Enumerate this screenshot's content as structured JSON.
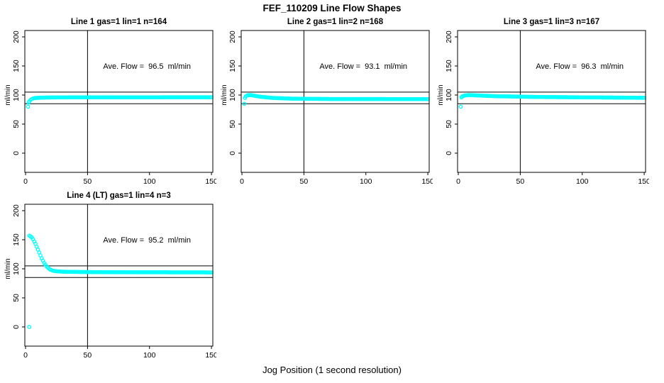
{
  "header": {
    "title": "FEF_110209  Line Flow Shapes"
  },
  "footer": {
    "xlabel": "Jog Position (1 second resolution)"
  },
  "colors": {
    "points": "#00FFFF",
    "axis": "#000000",
    "text": "#000000",
    "background": "#FFFFFF"
  },
  "axes": {
    "ylabel": "ml/min",
    "xticks": [
      0,
      50,
      100,
      150
    ],
    "yticks": [
      0,
      50,
      100,
      150,
      200
    ],
    "xlim": [
      -0.6,
      151.1
    ],
    "ylim": [
      -33,
      211
    ],
    "hlines": [
      85,
      105
    ],
    "vline": 50,
    "grid": false
  },
  "chart_data": [
    {
      "type": "scatter",
      "title": "Line 1 gas=1 lin=1 n=164",
      "annotation": "Ave. Flow =  96.5  ml/min",
      "ave_flow_ml_min": 96.5,
      "n": 164,
      "series": [
        {
          "name": "flow",
          "keyframes": [
            [
              2.5,
              87
            ],
            [
              3,
              89
            ],
            [
              4,
              91.5
            ],
            [
              5,
              93
            ],
            [
              6,
              94
            ],
            [
              8,
              95
            ],
            [
              12,
              95.5
            ],
            [
              25,
              96
            ],
            [
              150,
              96.2
            ]
          ],
          "isolated_points": [
            [
              2,
              80
            ]
          ]
        }
      ]
    },
    {
      "type": "scatter",
      "title": "Line 2 gas=1 lin=2 n=168",
      "annotation": "Ave. Flow =  93.1  ml/min",
      "ave_flow_ml_min": 93.1,
      "n": 168,
      "series": [
        {
          "name": "flow",
          "keyframes": [
            [
              2.5,
              95
            ],
            [
              3,
              97.5
            ],
            [
              4,
              99
            ],
            [
              5,
              99.8
            ],
            [
              7,
              100
            ],
            [
              10,
              98.8
            ],
            [
              15,
              97
            ],
            [
              25,
              95
            ],
            [
              40,
              93.8
            ],
            [
              70,
              93.2
            ],
            [
              150,
              93
            ]
          ],
          "isolated_points": [
            [
              2,
              85
            ]
          ]
        }
      ]
    },
    {
      "type": "scatter",
      "title": "Line 3 gas=1 lin=3 n=167",
      "annotation": "Ave. Flow =  96.3  ml/min",
      "ave_flow_ml_min": 96.3,
      "n": 167,
      "series": [
        {
          "name": "flow",
          "keyframes": [
            [
              2.5,
              96
            ],
            [
              3,
              97.5
            ],
            [
              5,
              99
            ],
            [
              8,
              100
            ],
            [
              15,
              99.3
            ],
            [
              30,
              98
            ],
            [
              60,
              96.8
            ],
            [
              100,
              96
            ],
            [
              150,
              95.3
            ]
          ],
          "isolated_points": [
            [
              2,
              80
            ]
          ]
        }
      ]
    },
    {
      "type": "scatter",
      "title": "Line 4 (LT) gas=1 lin=4 n=3",
      "annotation": "Ave. Flow =  95.2  ml/min",
      "ave_flow_ml_min": 95.2,
      "n": 3,
      "series": [
        {
          "name": "flow",
          "keyframes": [
            [
              3,
              157
            ],
            [
              4,
              156
            ],
            [
              5,
              154
            ],
            [
              6,
              151
            ],
            [
              7,
              147
            ],
            [
              8,
              143
            ],
            [
              9,
              138
            ],
            [
              10,
              133
            ],
            [
              11,
              128
            ],
            [
              12,
              123
            ],
            [
              13,
              118
            ],
            [
              14,
              114
            ],
            [
              15,
              110
            ],
            [
              16,
              107
            ],
            [
              17,
              104
            ],
            [
              18,
              102
            ],
            [
              19,
              100
            ],
            [
              20,
              98.5
            ],
            [
              22,
              96.8
            ],
            [
              25,
              95.8
            ],
            [
              30,
              95
            ],
            [
              40,
              94.6
            ],
            [
              60,
              94.2
            ],
            [
              100,
              94
            ],
            [
              150,
              93.8
            ]
          ],
          "isolated_points": [
            [
              3,
              0
            ]
          ]
        }
      ]
    }
  ]
}
